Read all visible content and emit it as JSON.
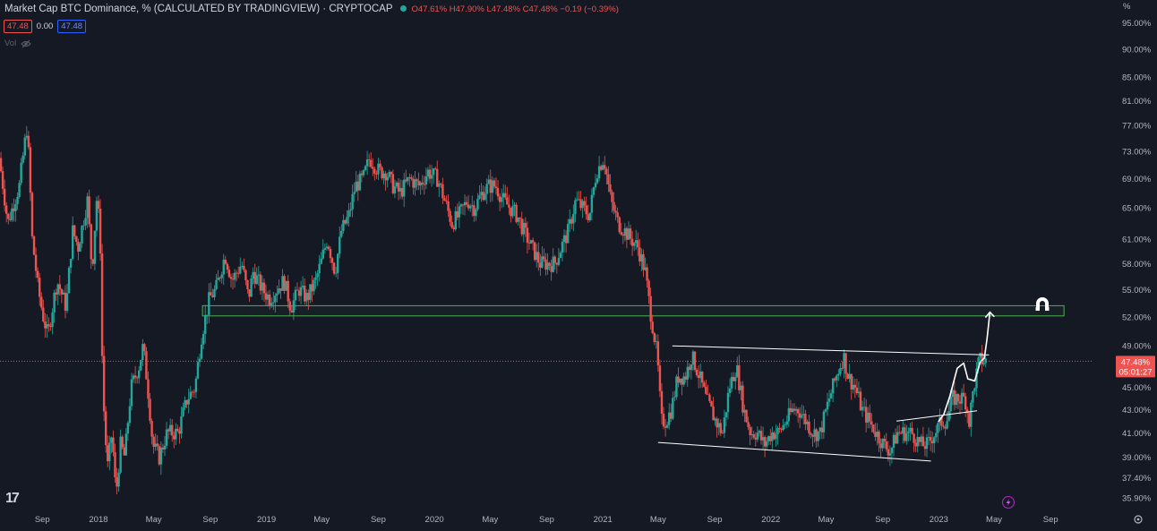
{
  "legend": {
    "title": "Market Cap BTC Dominance, % (CALCULATED BY TRADINGVIEW) · CRYPTOCAP",
    "open": "O47.61%",
    "high": "H47.90%",
    "low": "L47.48%",
    "close": "C47.48%",
    "change": "−0.19 (−0.39%)",
    "bid": "47.48",
    "spread": "0.00",
    "ask": "47.48",
    "volume_label": "Vol"
  },
  "price_tag": {
    "value": "47.48%",
    "countdown": "05:01:27"
  },
  "axis_unit": "%",
  "colors": {
    "background": "#151924",
    "up": "#26a69a",
    "down": "#ef5350",
    "zone": "#4caf50",
    "trendline": "#ffffff",
    "text": "#b2b5be"
  },
  "chart_data": {
    "type": "candlestick",
    "y_scale": "log",
    "ylim": [
      35.3,
      97
    ],
    "y_ticks": [
      "95.00%",
      "90.00%",
      "85.00%",
      "81.00%",
      "77.00%",
      "73.00%",
      "69.00%",
      "65.00%",
      "61.00%",
      "58.00%",
      "55.00%",
      "52.00%",
      "49.00%",
      "47.48%",
      "45.00%",
      "43.00%",
      "41.00%",
      "39.00%",
      "37.40%",
      "35.90%"
    ],
    "y_tick_values": [
      95,
      90,
      85,
      81,
      77,
      73,
      69,
      65,
      61,
      58,
      55,
      52,
      49,
      45,
      43,
      41,
      39,
      37.4,
      35.9
    ],
    "x_tick_labels": [
      "Sep",
      "2018",
      "May",
      "Sep",
      "2019",
      "May",
      "Sep",
      "2020",
      "May",
      "Sep",
      "2021",
      "May",
      "Sep",
      "2022",
      "May",
      "Sep",
      "2023",
      "May",
      "Sep"
    ],
    "x_tick_dates": [
      "2017-09-01",
      "2018-01-01",
      "2018-05-01",
      "2018-09-01",
      "2019-01-01",
      "2019-05-01",
      "2019-09-01",
      "2020-01-01",
      "2020-05-01",
      "2020-09-01",
      "2021-01-01",
      "2021-05-01",
      "2021-09-01",
      "2022-01-01",
      "2022-05-01",
      "2022-09-01",
      "2023-01-01",
      "2023-05-01",
      "2023-09-01"
    ],
    "price_path": [
      [
        "2017-06-01",
        72
      ],
      [
        "2017-06-20",
        63
      ],
      [
        "2017-07-15",
        68
      ],
      [
        "2017-08-01",
        77
      ],
      [
        "2017-08-12",
        61
      ],
      [
        "2017-08-25",
        55
      ],
      [
        "2017-09-05",
        52
      ],
      [
        "2017-09-15",
        50
      ],
      [
        "2017-10-05",
        56
      ],
      [
        "2017-10-25",
        53
      ],
      [
        "2017-11-08",
        62
      ],
      [
        "2017-11-20",
        60
      ],
      [
        "2017-12-10",
        66
      ],
      [
        "2017-12-20",
        57
      ],
      [
        "2017-12-31",
        67
      ],
      [
        "2018-01-07",
        60
      ],
      [
        "2018-01-12",
        45
      ],
      [
        "2018-01-22",
        38
      ],
      [
        "2018-02-01",
        41
      ],
      [
        "2018-02-10",
        36
      ],
      [
        "2018-02-20",
        40
      ],
      [
        "2018-03-01",
        39
      ],
      [
        "2018-03-15",
        45
      ],
      [
        "2018-04-01",
        47
      ],
      [
        "2018-04-10",
        49
      ],
      [
        "2018-04-20",
        45
      ],
      [
        "2018-05-01",
        40
      ],
      [
        "2018-05-15",
        39
      ],
      [
        "2018-06-01",
        41
      ],
      [
        "2018-06-25",
        41
      ],
      [
        "2018-07-15",
        44
      ],
      [
        "2018-08-01",
        45
      ],
      [
        "2018-08-15",
        50
      ],
      [
        "2018-09-01",
        54
      ],
      [
        "2018-09-15",
        55
      ],
      [
        "2018-10-05",
        59
      ],
      [
        "2018-10-20",
        56
      ],
      [
        "2018-11-10",
        58
      ],
      [
        "2018-11-25",
        54
      ],
      [
        "2018-12-05",
        57
      ],
      [
        "2018-12-25",
        55
      ],
      [
        "2019-01-10",
        54
      ],
      [
        "2019-01-25",
        55
      ],
      [
        "2019-02-10",
        56
      ],
      [
        "2019-02-25",
        53
      ],
      [
        "2019-03-15",
        55
      ],
      [
        "2019-04-01",
        54
      ],
      [
        "2019-04-20",
        56
      ],
      [
        "2019-05-01",
        58
      ],
      [
        "2019-05-15",
        61
      ],
      [
        "2019-06-01",
        57
      ],
      [
        "2019-06-15",
        62
      ],
      [
        "2019-07-01",
        64
      ],
      [
        "2019-07-15",
        68
      ],
      [
        "2019-08-01",
        69
      ],
      [
        "2019-08-15",
        72
      ],
      [
        "2019-09-05",
        70
      ],
      [
        "2019-09-20",
        70
      ],
      [
        "2019-10-05",
        68
      ],
      [
        "2019-10-20",
        67
      ],
      [
        "2019-11-10",
        69
      ],
      [
        "2019-12-01",
        68
      ],
      [
        "2019-12-20",
        70
      ],
      [
        "2020-01-10",
        69
      ],
      [
        "2020-01-25",
        66
      ],
      [
        "2020-02-10",
        63
      ],
      [
        "2020-02-25",
        64
      ],
      [
        "2020-03-15",
        66
      ],
      [
        "2020-03-30",
        65
      ],
      [
        "2020-04-15",
        67
      ],
      [
        "2020-04-30",
        68
      ],
      [
        "2020-05-15",
        68
      ],
      [
        "2020-06-01",
        66
      ],
      [
        "2020-06-15",
        65
      ],
      [
        "2020-07-01",
        64
      ],
      [
        "2020-07-15",
        62
      ],
      [
        "2020-08-01",
        60
      ],
      [
        "2020-08-20",
        58
      ],
      [
        "2020-09-05",
        58
      ],
      [
        "2020-09-20",
        58
      ],
      [
        "2020-10-05",
        60
      ],
      [
        "2020-10-20",
        62
      ],
      [
        "2020-11-05",
        66
      ],
      [
        "2020-11-20",
        65
      ],
      [
        "2020-12-05",
        64
      ],
      [
        "2020-12-20",
        70
      ],
      [
        "2021-01-05",
        72
      ],
      [
        "2021-01-20",
        66
      ],
      [
        "2021-02-05",
        63
      ],
      [
        "2021-02-20",
        62
      ],
      [
        "2021-03-05",
        61
      ],
      [
        "2021-03-20",
        60
      ],
      [
        "2021-04-05",
        57
      ],
      [
        "2021-04-15",
        53
      ],
      [
        "2021-05-01",
        48
      ],
      [
        "2021-05-10",
        42
      ],
      [
        "2021-05-20",
        42
      ],
      [
        "2021-06-01",
        43
      ],
      [
        "2021-06-15",
        46
      ],
      [
        "2021-07-01",
        46
      ],
      [
        "2021-07-15",
        48
      ],
      [
        "2021-08-01",
        46
      ],
      [
        "2021-08-15",
        44
      ],
      [
        "2021-09-05",
        42
      ],
      [
        "2021-09-20",
        41
      ],
      [
        "2021-10-05",
        45
      ],
      [
        "2021-10-20",
        47
      ],
      [
        "2021-11-05",
        43
      ],
      [
        "2021-11-20",
        41
      ],
      [
        "2021-12-05",
        41
      ],
      [
        "2021-12-20",
        40
      ],
      [
        "2022-01-05",
        41
      ],
      [
        "2022-01-20",
        41
      ],
      [
        "2022-02-05",
        42
      ],
      [
        "2022-02-20",
        43
      ],
      [
        "2022-03-05",
        43
      ],
      [
        "2022-03-20",
        42
      ],
      [
        "2022-04-05",
        41
      ],
      [
        "2022-04-20",
        41
      ],
      [
        "2022-05-10",
        44
      ],
      [
        "2022-05-25",
        46
      ],
      [
        "2022-06-10",
        48
      ],
      [
        "2022-06-20",
        46
      ],
      [
        "2022-07-05",
        45
      ],
      [
        "2022-07-20",
        43
      ],
      [
        "2022-08-05",
        42
      ],
      [
        "2022-08-20",
        41
      ],
      [
        "2022-09-05",
        40
      ],
      [
        "2022-09-20",
        39.5
      ],
      [
        "2022-10-05",
        41
      ],
      [
        "2022-10-20",
        41
      ],
      [
        "2022-11-05",
        41
      ],
      [
        "2022-11-15",
        40.5
      ],
      [
        "2022-11-25",
        40
      ],
      [
        "2022-12-10",
        40
      ],
      [
        "2022-12-25",
        41
      ],
      [
        "2023-01-10",
        42
      ],
      [
        "2023-01-20",
        42
      ],
      [
        "2023-02-01",
        44
      ],
      [
        "2023-02-15",
        44
      ],
      [
        "2023-03-01",
        44
      ],
      [
        "2023-03-10",
        42
      ],
      [
        "2023-03-20",
        45
      ],
      [
        "2023-04-01",
        47.6
      ],
      [
        "2023-04-12",
        47.5
      ]
    ],
    "zone": {
      "from": "2018-08-15",
      "to": "2023-09-30",
      "low": 52.1,
      "high": 53.2
    },
    "trendlines": [
      {
        "from": [
          "2021-06-01",
          49.0
        ],
        "to": [
          "2023-04-20",
          48.1
        ]
      },
      {
        "from": [
          "2021-05-01",
          40.2
        ],
        "to": [
          "2022-12-15",
          38.7
        ]
      },
      {
        "from": [
          "2022-10-01",
          42.0
        ],
        "to": [
          "2023-03-25",
          42.9
        ]
      }
    ],
    "projection": [
      [
        "2023-01-01",
        42.0
      ],
      [
        "2023-01-12",
        42.6
      ],
      [
        "2023-01-25",
        44.2
      ],
      [
        "2023-02-10",
        46.8
      ],
      [
        "2023-02-24",
        47.3
      ],
      [
        "2023-03-05",
        45.8
      ],
      [
        "2023-03-20",
        45.6
      ],
      [
        "2023-04-01",
        47.4
      ],
      [
        "2023-04-10",
        47.8
      ],
      [
        "2023-04-16",
        49.8
      ],
      [
        "2023-04-22",
        52.5
      ]
    ],
    "current_price": 47.48
  }
}
